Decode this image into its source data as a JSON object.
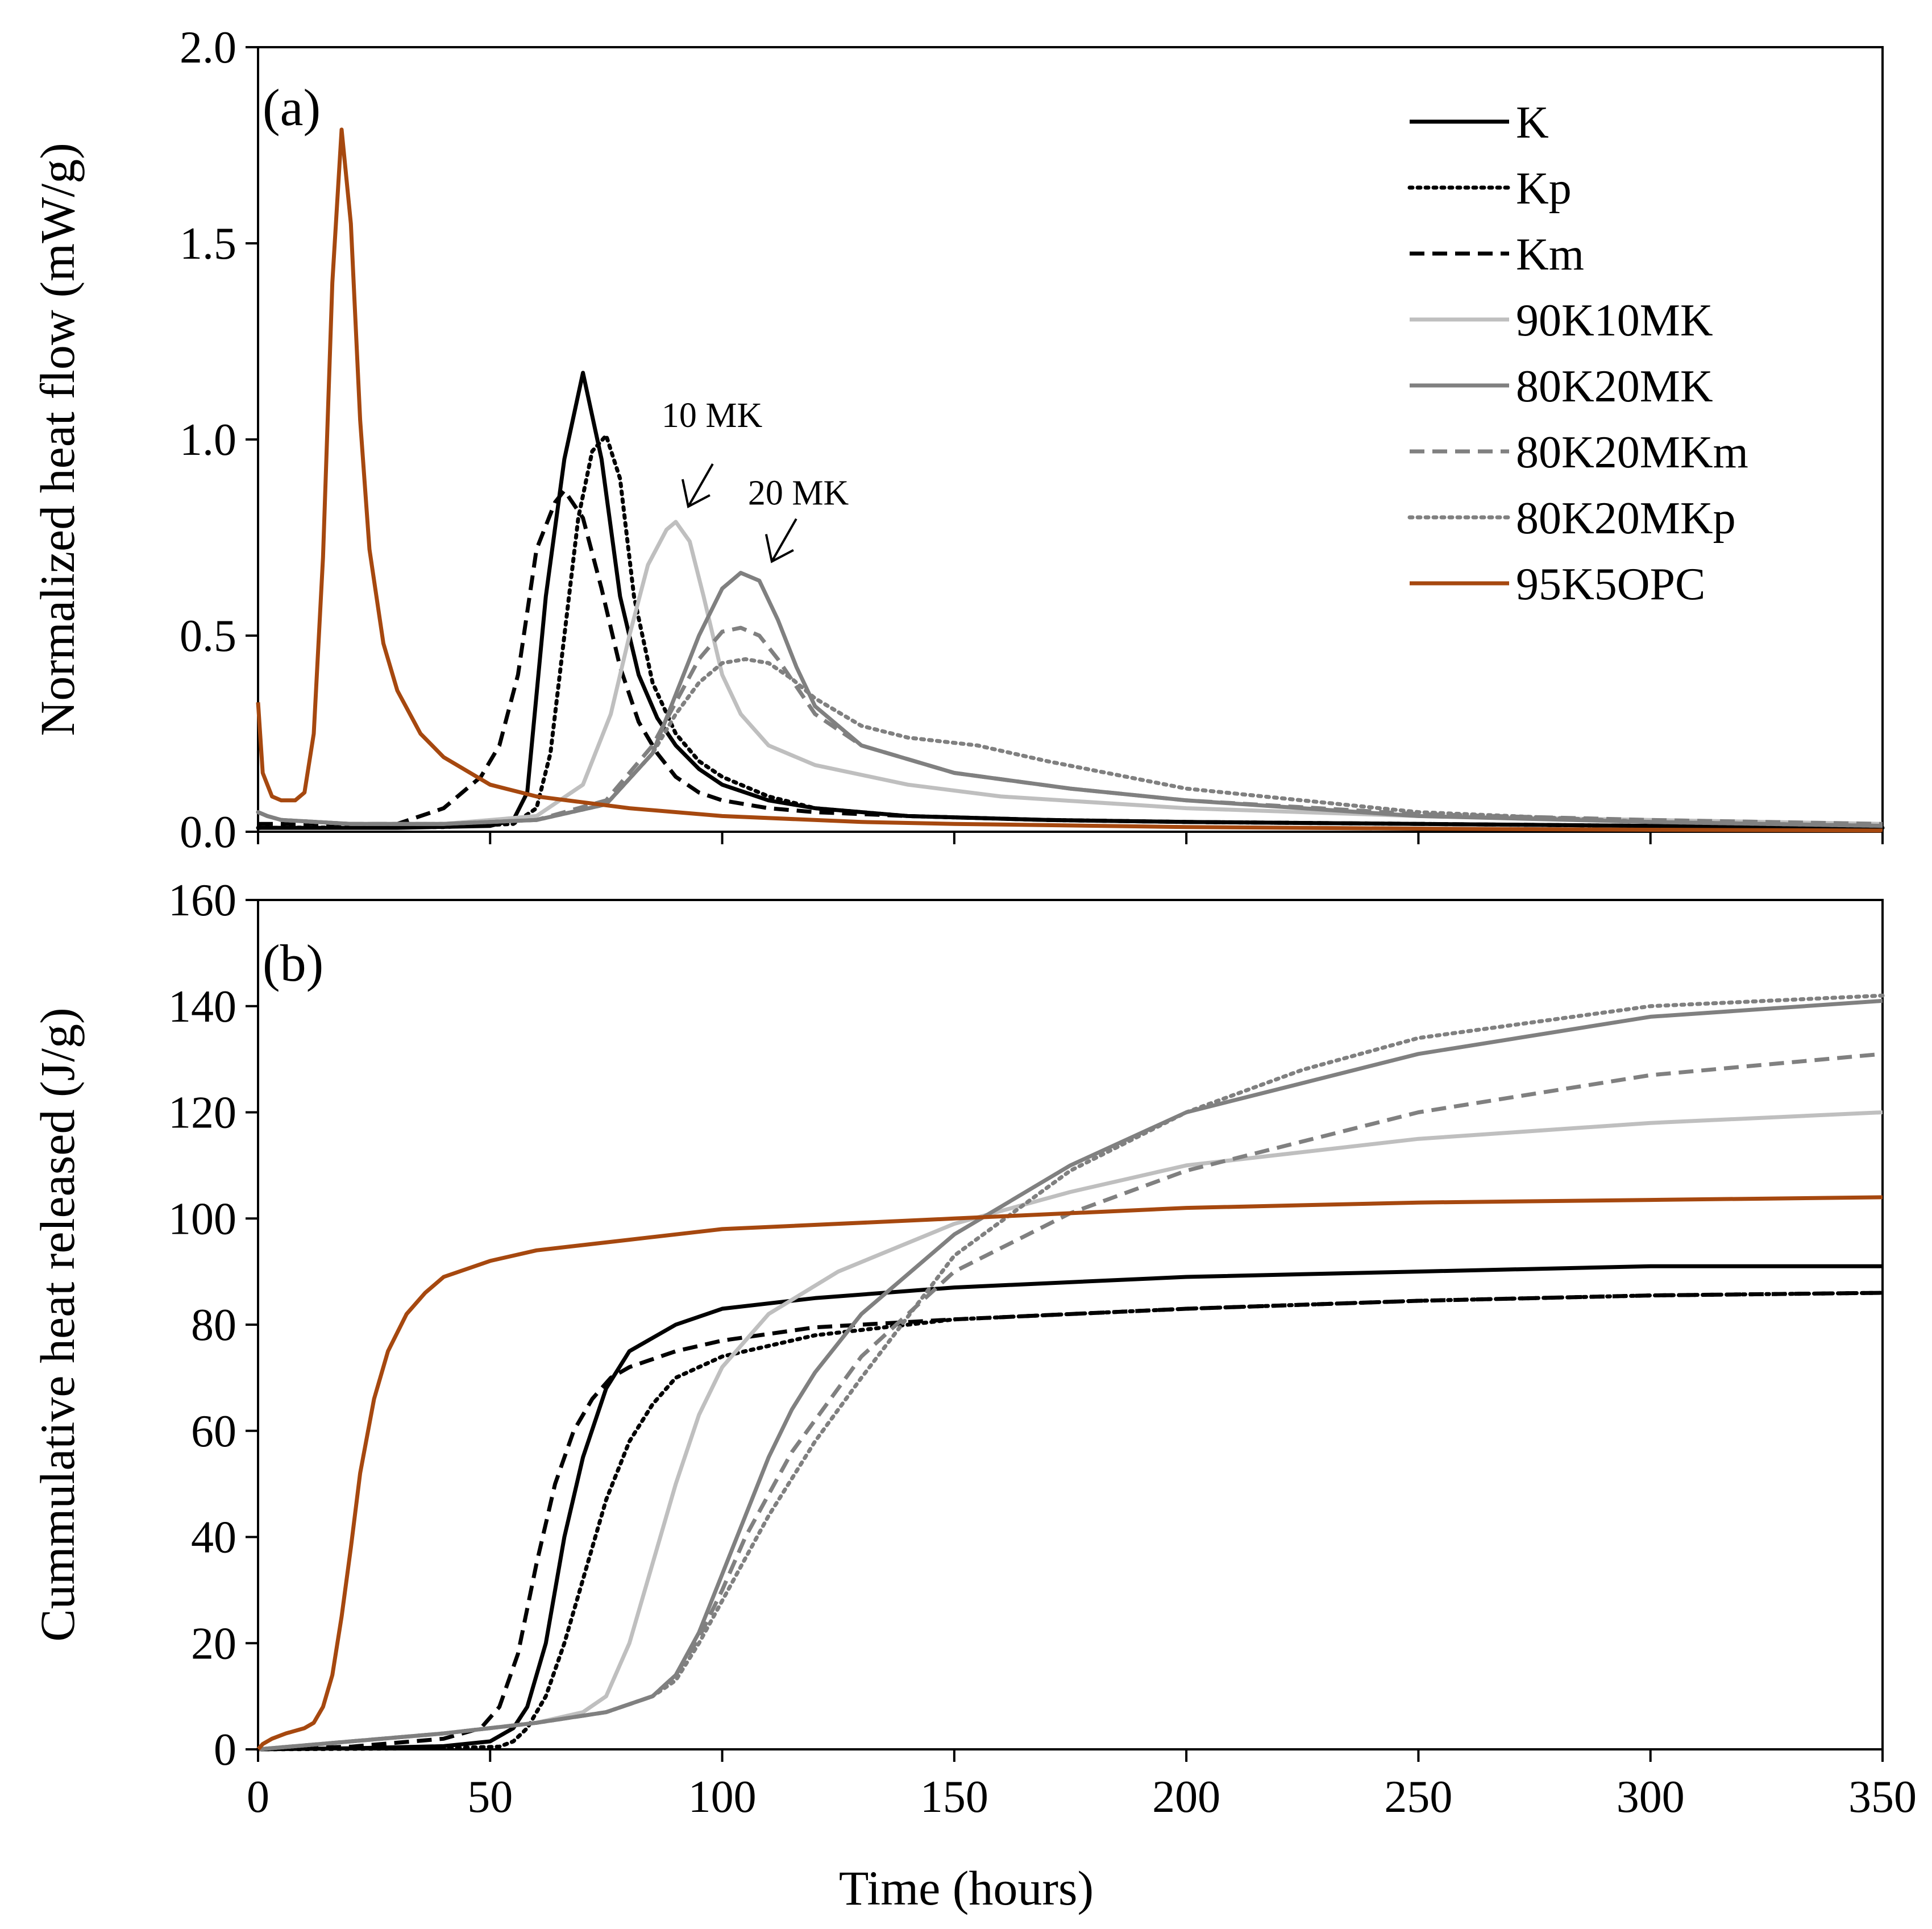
{
  "figure": {
    "xlabel": "Time (hours)",
    "colors": {
      "black": "#000000",
      "light_gray": "#bfbfbf",
      "mid_gray": "#808080",
      "brown": "#a6480f"
    }
  },
  "chart_data": [
    {
      "type": "line",
      "panel_label": "(a)",
      "ylabel": "Normalized heat flow (mW/g)",
      "xlabel": "",
      "xlim": [
        0,
        350
      ],
      "ylim": [
        0,
        2.0
      ],
      "xticks": [
        0,
        50,
        100,
        150,
        200,
        250,
        300,
        350
      ],
      "yticks": [
        "0.0",
        "0.5",
        "1.0",
        "1.5",
        "2.0"
      ],
      "legend_position": "top-right",
      "series": [
        {
          "name": "K",
          "style": "solid",
          "color": "#000000",
          "x": [
            0,
            30,
            50,
            55,
            58,
            62,
            66,
            70,
            74,
            78,
            82,
            86,
            90,
            95,
            100,
            110,
            120,
            140,
            170,
            200,
            250,
            300,
            350
          ],
          "y": [
            0.01,
            0.01,
            0.015,
            0.03,
            0.1,
            0.6,
            0.95,
            1.17,
            0.95,
            0.6,
            0.4,
            0.29,
            0.22,
            0.16,
            0.12,
            0.08,
            0.06,
            0.04,
            0.03,
            0.025,
            0.02,
            0.015,
            0.01
          ]
        },
        {
          "name": "Kp",
          "style": "dotted",
          "color": "#000000",
          "x": [
            0,
            40,
            55,
            60,
            63,
            66,
            69,
            72,
            75,
            78,
            81,
            85,
            90,
            95,
            100,
            110,
            120,
            140,
            170,
            200,
            250,
            300,
            350
          ],
          "y": [
            0.01,
            0.012,
            0.02,
            0.06,
            0.2,
            0.5,
            0.8,
            0.97,
            1.01,
            0.9,
            0.6,
            0.38,
            0.25,
            0.18,
            0.14,
            0.09,
            0.06,
            0.04,
            0.03,
            0.025,
            0.02,
            0.015,
            0.01
          ]
        },
        {
          "name": "Km",
          "style": "dashed",
          "color": "#000000",
          "x": [
            0,
            30,
            40,
            48,
            52,
            56,
            60,
            64,
            66,
            70,
            74,
            78,
            82,
            86,
            90,
            95,
            100,
            110,
            120,
            140,
            170,
            200,
            250,
            300,
            350
          ],
          "y": [
            0.02,
            0.02,
            0.06,
            0.14,
            0.22,
            0.4,
            0.72,
            0.84,
            0.87,
            0.8,
            0.62,
            0.42,
            0.28,
            0.2,
            0.14,
            0.1,
            0.08,
            0.06,
            0.05,
            0.04,
            0.03,
            0.025,
            0.02,
            0.015,
            0.01
          ]
        },
        {
          "name": "90K10MK",
          "style": "solid",
          "color": "#bfbfbf",
          "x": [
            0,
            2,
            5,
            20,
            40,
            60,
            70,
            76,
            80,
            84,
            88,
            90,
            93,
            96,
            100,
            104,
            110,
            120,
            140,
            160,
            200,
            250,
            300,
            350
          ],
          "y": [
            0.05,
            0.04,
            0.03,
            0.02,
            0.02,
            0.04,
            0.12,
            0.3,
            0.5,
            0.68,
            0.77,
            0.79,
            0.74,
            0.6,
            0.4,
            0.3,
            0.22,
            0.17,
            0.12,
            0.09,
            0.06,
            0.04,
            0.03,
            0.02
          ]
        },
        {
          "name": "80K20MK",
          "style": "solid",
          "color": "#808080",
          "x": [
            0,
            2,
            5,
            20,
            40,
            60,
            75,
            85,
            90,
            95,
            100,
            104,
            108,
            112,
            116,
            120,
            130,
            150,
            175,
            200,
            250,
            300,
            350
          ],
          "y": [
            0.05,
            0.04,
            0.03,
            0.02,
            0.02,
            0.03,
            0.07,
            0.2,
            0.35,
            0.5,
            0.62,
            0.66,
            0.64,
            0.54,
            0.42,
            0.32,
            0.22,
            0.15,
            0.11,
            0.08,
            0.04,
            0.025,
            0.015
          ]
        },
        {
          "name": "80K20MKm",
          "style": "dashed",
          "color": "#808080",
          "x": [
            0,
            2,
            5,
            20,
            40,
            60,
            75,
            85,
            90,
            95,
            100,
            104,
            108,
            112,
            116,
            120,
            130,
            150,
            175,
            200,
            250,
            300,
            350
          ],
          "y": [
            0.05,
            0.04,
            0.03,
            0.02,
            0.02,
            0.03,
            0.08,
            0.22,
            0.33,
            0.44,
            0.51,
            0.52,
            0.5,
            0.44,
            0.37,
            0.3,
            0.22,
            0.15,
            0.11,
            0.08,
            0.045,
            0.03,
            0.02
          ]
        },
        {
          "name": "80K20MKp",
          "style": "dotted",
          "color": "#808080",
          "x": [
            0,
            2,
            5,
            20,
            40,
            60,
            75,
            85,
            90,
            95,
            100,
            105,
            110,
            115,
            120,
            130,
            140,
            155,
            170,
            200,
            250,
            300,
            350
          ],
          "y": [
            0.05,
            0.04,
            0.03,
            0.02,
            0.02,
            0.03,
            0.07,
            0.2,
            0.3,
            0.38,
            0.43,
            0.44,
            0.43,
            0.39,
            0.34,
            0.27,
            0.24,
            0.22,
            0.18,
            0.11,
            0.05,
            0.025,
            0.015
          ]
        },
        {
          "name": "95K5OPC",
          "style": "solid",
          "color": "#a6480f",
          "x": [
            0,
            1,
            3,
            5,
            8,
            10,
            12,
            14,
            16,
            18,
            20,
            22,
            24,
            27,
            30,
            35,
            40,
            50,
            60,
            80,
            100,
            130,
            150,
            200,
            250,
            300,
            350
          ],
          "y": [
            0.33,
            0.15,
            0.09,
            0.08,
            0.08,
            0.1,
            0.25,
            0.7,
            1.4,
            1.79,
            1.55,
            1.05,
            0.72,
            0.48,
            0.36,
            0.25,
            0.19,
            0.12,
            0.09,
            0.06,
            0.04,
            0.025,
            0.02,
            0.012,
            0.008,
            0.005,
            0.003
          ]
        }
      ],
      "annotations": [
        {
          "text": "10 MK",
          "x": 90,
          "y": 0.8
        },
        {
          "text": "20 MK",
          "x": 108,
          "y": 0.66
        }
      ]
    },
    {
      "type": "line",
      "panel_label": "(b)",
      "ylabel": "Cummulative heat released (J/g)",
      "xlabel": "Time (hours)",
      "xlim": [
        0,
        350
      ],
      "ylim": [
        0,
        160
      ],
      "xticks": [
        0,
        50,
        100,
        150,
        200,
        250,
        300,
        350
      ],
      "yticks": [
        "0",
        "20",
        "40",
        "60",
        "80",
        "100",
        "120",
        "140",
        "160"
      ],
      "series": [
        {
          "name": "K",
          "style": "solid",
          "color": "#000000",
          "x": [
            0,
            20,
            40,
            50,
            55,
            58,
            62,
            66,
            70,
            75,
            80,
            90,
            100,
            120,
            150,
            200,
            250,
            300,
            350
          ],
          "y": [
            0,
            0.2,
            0.6,
            1.5,
            4,
            8,
            20,
            40,
            55,
            68,
            75,
            80,
            83,
            85,
            87,
            89,
            90,
            91,
            91
          ]
        },
        {
          "name": "Kp",
          "style": "dotted",
          "color": "#000000",
          "x": [
            0,
            40,
            52,
            55,
            58,
            62,
            66,
            70,
            75,
            80,
            85,
            90,
            100,
            120,
            150,
            200,
            250,
            300,
            350
          ],
          "y": [
            0,
            0.2,
            0.5,
            1.5,
            4,
            10,
            20,
            32,
            47,
            58,
            65,
            70,
            74,
            78,
            81,
            83,
            84.5,
            85.5,
            86
          ]
        },
        {
          "name": "Km",
          "style": "dashed",
          "color": "#000000",
          "x": [
            0,
            20,
            40,
            48,
            52,
            56,
            60,
            64,
            68,
            72,
            76,
            80,
            90,
            100,
            120,
            150,
            200,
            250,
            300,
            350
          ],
          "y": [
            0,
            0.5,
            2,
            4,
            8,
            18,
            35,
            50,
            60,
            66,
            70,
            72,
            75,
            77,
            79.5,
            81,
            83,
            84.5,
            85.5,
            86
          ]
        },
        {
          "name": "90K10MK",
          "style": "solid",
          "color": "#bfbfbf",
          "x": [
            0,
            20,
            40,
            60,
            70,
            75,
            80,
            85,
            90,
            95,
            100,
            110,
            125,
            150,
            175,
            200,
            250,
            300,
            350
          ],
          "y": [
            0,
            1.5,
            3,
            5,
            7,
            10,
            20,
            35,
            50,
            63,
            72,
            82,
            90,
            99,
            105,
            110,
            115,
            118,
            120
          ]
        },
        {
          "name": "80K20MK",
          "style": "solid",
          "color": "#808080",
          "x": [
            0,
            20,
            40,
            60,
            75,
            85,
            90,
            95,
            100,
            105,
            110,
            115,
            120,
            130,
            150,
            175,
            200,
            250,
            300,
            350
          ],
          "y": [
            0,
            1.5,
            3,
            5,
            7,
            10,
            14,
            22,
            33,
            44,
            55,
            64,
            71,
            82,
            97,
            110,
            120,
            131,
            138,
            141
          ]
        },
        {
          "name": "80K20MKm",
          "style": "dashed",
          "color": "#808080",
          "x": [
            0,
            20,
            40,
            60,
            75,
            85,
            90,
            95,
            100,
            105,
            110,
            115,
            120,
            130,
            150,
            175,
            200,
            250,
            300,
            350
          ],
          "y": [
            0,
            1.5,
            3,
            5,
            7,
            10,
            14,
            21,
            30,
            40,
            48,
            56,
            62,
            74,
            90,
            101,
            109,
            120,
            127,
            131
          ]
        },
        {
          "name": "80K20MKp",
          "style": "dotted",
          "color": "#808080",
          "x": [
            0,
            20,
            40,
            60,
            75,
            85,
            90,
            95,
            100,
            105,
            110,
            115,
            120,
            130,
            150,
            175,
            200,
            225,
            250,
            300,
            350
          ],
          "y": [
            0,
            1.5,
            3,
            5,
            7,
            10,
            13,
            20,
            28,
            36,
            44,
            51,
            58,
            70,
            93,
            109,
            120,
            128,
            134,
            140,
            142
          ]
        },
        {
          "name": "95K5OPC",
          "style": "solid",
          "color": "#a6480f",
          "x": [
            0,
            1,
            3,
            6,
            10,
            12,
            14,
            16,
            18,
            20,
            22,
            25,
            28,
            32,
            36,
            40,
            50,
            60,
            80,
            100,
            150,
            200,
            250,
            300,
            350
          ],
          "y": [
            0,
            1,
            2,
            3,
            4,
            5,
            8,
            14,
            25,
            38,
            52,
            66,
            75,
            82,
            86,
            89,
            92,
            94,
            96,
            98,
            100,
            102,
            103,
            103.5,
            104
          ]
        }
      ]
    }
  ]
}
